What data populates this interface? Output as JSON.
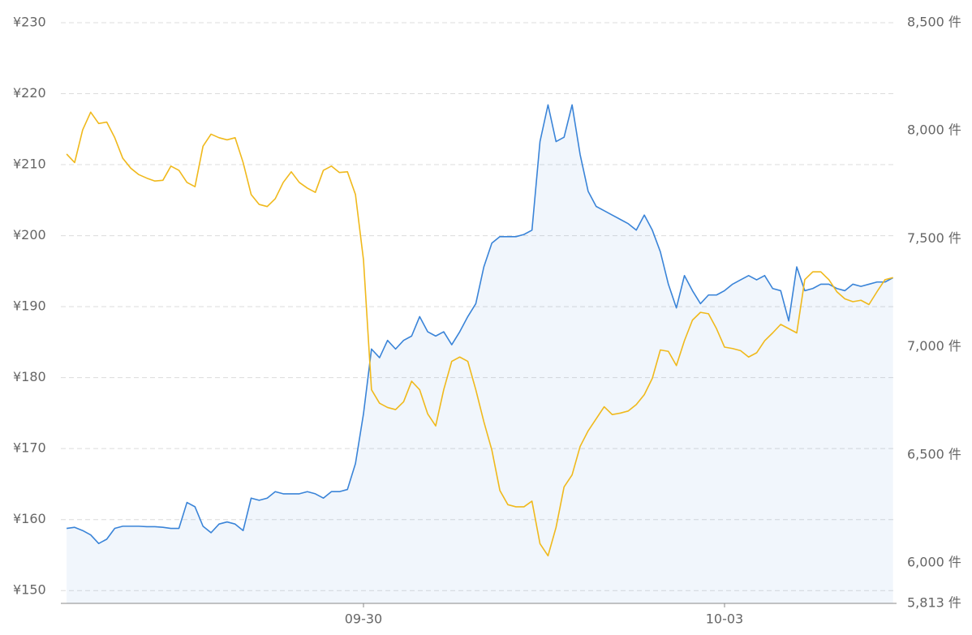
{
  "chart_data": {
    "type": "line",
    "categories": [
      null,
      null,
      null,
      null,
      null,
      null,
      null,
      null,
      null,
      null,
      null,
      null,
      null,
      null,
      null,
      null,
      null,
      null,
      null,
      null,
      null,
      null,
      null,
      null,
      null,
      null,
      null,
      null,
      null,
      null,
      null,
      null,
      null,
      null,
      null,
      null,
      null,
      "09-30",
      null,
      null,
      null,
      null,
      null,
      null,
      null,
      null,
      null,
      null,
      null,
      null,
      null,
      null,
      null,
      null,
      null,
      null,
      null,
      null,
      null,
      null,
      null,
      null,
      null,
      null,
      null,
      null,
      null,
      null,
      null,
      null,
      null,
      null,
      null,
      null,
      null,
      null,
      null,
      null,
      null,
      null,
      null,
      null,
      "10-03",
      null,
      null,
      null,
      null,
      null,
      null,
      null,
      null,
      null,
      null,
      null,
      null,
      null,
      null,
      null,
      null,
      null,
      null,
      null,
      null,
      null
    ],
    "series": [
      {
        "color": "#3a84d8",
        "axis": "y2",
        "area": true,
        "values": [
          6160,
          6165,
          6150,
          6130,
          6090,
          6110,
          6160,
          6170,
          6170,
          6170,
          6168,
          6168,
          6165,
          6160,
          6160,
          6280,
          6260,
          6170,
          6140,
          6180,
          6190,
          6180,
          6150,
          6300,
          6290,
          6300,
          6330,
          6320,
          6320,
          6320,
          6330,
          6320,
          6300,
          6330,
          6330,
          6340,
          6460,
          6690,
          6990,
          6950,
          7030,
          6990,
          7030,
          7050,
          7140,
          7070,
          7050,
          7070,
          7010,
          7070,
          7140,
          7200,
          7370,
          7480,
          7510,
          7510,
          7510,
          7520,
          7540,
          7950,
          8120,
          7950,
          7970,
          8120,
          7890,
          7720,
          7650,
          7630,
          7610,
          7590,
          7570,
          7540,
          7610,
          7540,
          7440,
          7290,
          7180,
          7330,
          7260,
          7200,
          7240,
          7240,
          7260,
          7290,
          7310,
          7330,
          7310,
          7330,
          7270,
          7260,
          7120,
          7370,
          7260,
          7270,
          7290,
          7290,
          7270,
          7260,
          7290,
          7280,
          7290,
          7300,
          7300,
          7320
        ]
      },
      {
        "color": "#f0b91c",
        "values": [
          211.5,
          210.3,
          214.9,
          217.4,
          215.8,
          216,
          213.8,
          210.9,
          209.5,
          208.6,
          208.1,
          207.7,
          207.8,
          209.8,
          209.2,
          207.5,
          206.9,
          212.6,
          214.3,
          213.8,
          213.5,
          213.8,
          210.3,
          205.8,
          204.4,
          204.1,
          205.2,
          207.5,
          209,
          207.5,
          206.7,
          206.1,
          209.2,
          209.8,
          208.9,
          209,
          205.8,
          196.6,
          178.3,
          176.4,
          175.8,
          175.5,
          176.6,
          179.5,
          178.3,
          174.9,
          173.2,
          178.3,
          182.3,
          182.9,
          182.3,
          178.3,
          173.8,
          169.8,
          164.1,
          162.1,
          161.8,
          161.8,
          162.6,
          156.6,
          154.9,
          158.9,
          164.6,
          166.3,
          170.3,
          172.5,
          174.2,
          175.9,
          174.8,
          175,
          175.3,
          176.2,
          177.6,
          179.9,
          183.9,
          183.7,
          181.7,
          185.2,
          188.1,
          189.2,
          189,
          186.9,
          184.3,
          184.1,
          183.8,
          182.9,
          183.5,
          185.2,
          186.3,
          187.5,
          186.9,
          186.3,
          193.8,
          194.9,
          194.9,
          193.8,
          192.1,
          191.1,
          190.7,
          190.9,
          190.3,
          192.1,
          193.8,
          194.1
        ]
      }
    ],
    "ylim": [
      148.2,
      230
    ],
    "yticks": [
      {
        "value": 150,
        "label": "¥150"
      },
      {
        "value": 160,
        "label": "¥160"
      },
      {
        "value": 170,
        "label": "¥170"
      },
      {
        "value": 180,
        "label": "¥180"
      },
      {
        "value": 190,
        "label": "¥190"
      },
      {
        "value": 200,
        "label": "¥200"
      },
      {
        "value": 210,
        "label": "¥210"
      },
      {
        "value": 220,
        "label": "¥220"
      },
      {
        "value": 230,
        "label": "¥230"
      }
    ],
    "y2lim": [
      5813,
      8500
    ],
    "y2ticks": [
      {
        "value": 5813,
        "label": "5,813 件"
      },
      {
        "value": 6000,
        "label": "6,000 件"
      },
      {
        "value": 6500,
        "label": "6,500 件"
      },
      {
        "value": 7000,
        "label": "7,000 件"
      },
      {
        "value": 7500,
        "label": "7,500 件"
      },
      {
        "value": 8000,
        "label": "8,000 件"
      },
      {
        "value": 8500,
        "label": "8,500 件"
      }
    ],
    "grid": true
  }
}
